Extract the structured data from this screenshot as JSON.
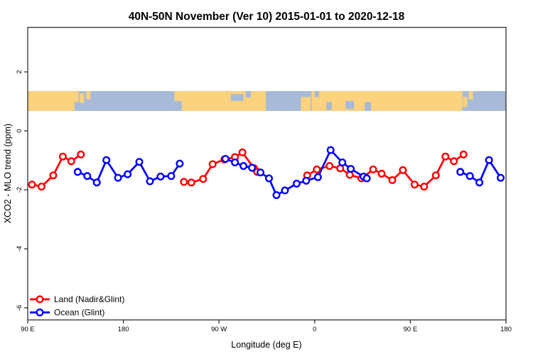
{
  "chart_data": {
    "type": "line",
    "title": "40N-50N November (Ver 10)   2015-01-01 to 2020-12-18",
    "xlabel": "Longitude (deg E)",
    "ylabel": "XCO2 - MLO trend (ppm)",
    "xlim": [
      90,
      540
    ],
    "ylim": [
      -6.41,
      3.51
    ],
    "grid": false,
    "frame_color": "#2f2f2f",
    "x_ticks": [
      {
        "value": 90,
        "label": "90 E"
      },
      {
        "value": 180,
        "label": "180"
      },
      {
        "value": 270,
        "label": "90 W"
      },
      {
        "value": 360,
        "label": "0"
      },
      {
        "value": 450,
        "label": "90 E"
      },
      {
        "value": 540,
        "label": "180"
      }
    ],
    "y_ticks": [
      2,
      0,
      -2,
      -4,
      -6
    ],
    "legend": {
      "position": "bottom-left",
      "entries": [
        {
          "id": "land",
          "label": "Land (Nadir&Glint)",
          "color": "#ff0000"
        },
        {
          "id": "ocean",
          "label": "Ocean (Glint)",
          "color": "#0000ff"
        }
      ]
    },
    "series": [
      {
        "id": "land",
        "name": "Land (Nadir&Glint)",
        "color": "#ff0000",
        "marker": "open-circle",
        "segments": [
          [
            [
              94,
              -1.82
            ],
            [
              103,
              -1.89
            ],
            [
              114,
              -1.51
            ],
            [
              123,
              -0.87
            ],
            [
              131,
              -1.03
            ],
            [
              140,
              -0.8
            ]
          ],
          [
            [
              237,
              -1.73
            ],
            [
              244,
              -1.75
            ],
            [
              255,
              -1.63
            ],
            [
              264,
              -1.13
            ],
            [
              275,
              -0.97
            ],
            [
              285,
              -0.89
            ],
            [
              292,
              -0.73
            ],
            [
              303,
              -1.27
            ],
            [
              306,
              -1.39
            ]
          ],
          [
            [
              353,
              -1.51
            ],
            [
              362,
              -1.31
            ],
            [
              374,
              -1.19
            ],
            [
              384,
              -1.27
            ],
            [
              393,
              -1.49
            ],
            [
              404,
              -1.61
            ],
            [
              415,
              -1.31
            ],
            [
              423,
              -1.45
            ],
            [
              433,
              -1.67
            ],
            [
              443,
              -1.33
            ],
            [
              454,
              -1.82
            ],
            [
              463,
              -1.89
            ],
            [
              474,
              -1.51
            ],
            [
              483,
              -0.87
            ],
            [
              491,
              -1.03
            ],
            [
              500,
              -0.8
            ]
          ]
        ]
      },
      {
        "id": "ocean",
        "name": "Ocean (Glint)",
        "color": "#0000ff",
        "marker": "open-circle",
        "segments": [
          [
            [
              137,
              -1.39
            ],
            [
              146,
              -1.53
            ],
            [
              155,
              -1.75
            ],
            [
              164,
              -0.99
            ],
            [
              175,
              -1.59
            ],
            [
              184,
              -1.47
            ],
            [
              195,
              -1.05
            ],
            [
              205,
              -1.71
            ],
            [
              215,
              -1.55
            ],
            [
              225,
              -1.53
            ],
            [
              233,
              -1.11
            ]
          ],
          [
            [
              276,
              -0.95
            ],
            [
              285,
              -1.07
            ],
            [
              293,
              -1.19
            ],
            [
              301,
              -1.25
            ],
            [
              309,
              -1.41
            ],
            [
              317,
              -1.61
            ],
            [
              324,
              -2.18
            ],
            [
              332,
              -2.02
            ],
            [
              343,
              -1.79
            ],
            [
              352,
              -1.69
            ],
            [
              363,
              -1.57
            ],
            [
              375,
              -0.65
            ],
            [
              386,
              -1.07
            ],
            [
              394,
              -1.29
            ],
            [
              406,
              -1.55
            ],
            [
              409,
              -1.61
            ]
          ],
          [
            [
              497,
              -1.39
            ],
            [
              506,
              -1.53
            ],
            [
              515,
              -1.75
            ],
            [
              524,
              -0.99
            ],
            [
              535,
              -1.59
            ]
          ]
        ]
      }
    ],
    "map_band": {
      "description": "latitude strip map 40N-50N",
      "value_range": [
        0.675,
        1.35
      ],
      "land_color": "#fbd27e",
      "ocean_color": "#a7bad7",
      "features": [
        {
          "type": "land",
          "lon": [
            90,
            134
          ],
          "frac": [
            0,
            1
          ]
        },
        {
          "type": "land",
          "lon": [
            235,
            314
          ],
          "frac": [
            0,
            1
          ]
        },
        {
          "type": "land",
          "lon": [
            357,
            499
          ],
          "frac": [
            0,
            1
          ]
        },
        {
          "type": "land",
          "lon": [
            134,
            138
          ],
          "frac": [
            0,
            0.55
          ]
        },
        {
          "type": "land",
          "lon": [
            139,
            143
          ],
          "frac": [
            0.12,
            0.58
          ]
        },
        {
          "type": "land",
          "lon": [
            145,
            149
          ],
          "frac": [
            0,
            0.42
          ]
        },
        {
          "type": "land",
          "lon": [
            228,
            236
          ],
          "frac": [
            0,
            0.5
          ]
        },
        {
          "type": "land",
          "lon": [
            347,
            356
          ],
          "frac": [
            0.3,
            1
          ]
        },
        {
          "type": "land",
          "lon": [
            499.5,
            503.5
          ],
          "frac": [
            0.3,
            0.8
          ]
        },
        {
          "type": "land",
          "lon": [
            505,
            509
          ],
          "frac": [
            0,
            0.42
          ]
        },
        {
          "type": "ocean",
          "lon": [
            281,
            293
          ],
          "frac": [
            0.15,
            0.5
          ]
        },
        {
          "type": "ocean",
          "lon": [
            295,
            300
          ],
          "frac": [
            0,
            0.32
          ]
        },
        {
          "type": "ocean",
          "lon": [
            360,
            364
          ],
          "frac": [
            0,
            0.3
          ]
        },
        {
          "type": "ocean",
          "lon": [
            371,
            376
          ],
          "frac": [
            0.55,
            0.95
          ]
        },
        {
          "type": "ocean",
          "lon": [
            389,
            397
          ],
          "frac": [
            0.5,
            0.9
          ]
        },
        {
          "type": "ocean",
          "lon": [
            407,
            413
          ],
          "frac": [
            0.55,
            1
          ]
        }
      ]
    }
  }
}
